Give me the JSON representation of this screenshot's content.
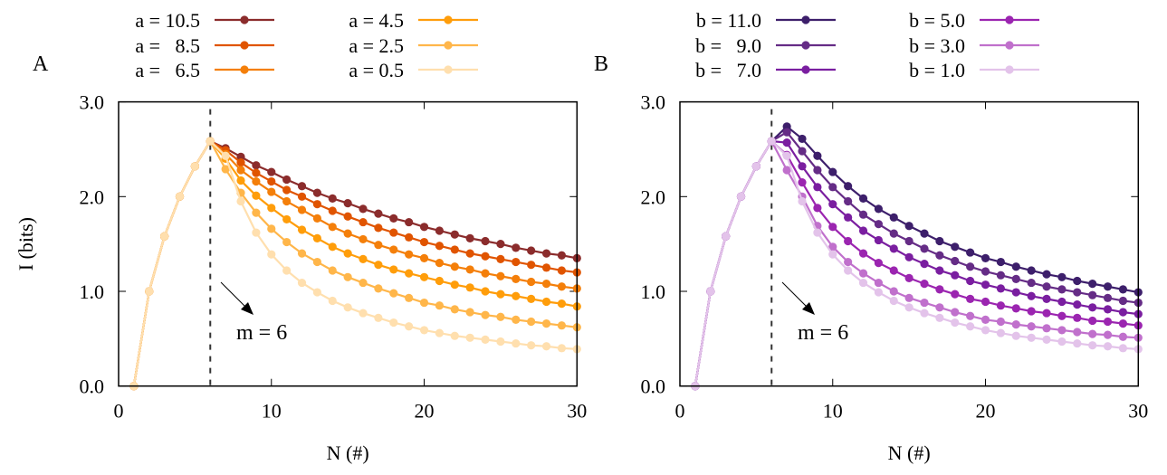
{
  "chart_data": [
    {
      "type": "line",
      "panel_label": "A",
      "xlabel": "N (#)",
      "ylabel": "I (bits)",
      "xlim": [
        0,
        30
      ],
      "ylim": [
        0,
        3.0
      ],
      "xticks": [
        "0",
        "10",
        "20",
        "30"
      ],
      "yticks": [
        "0.0",
        "1.0",
        "2.0",
        "3.0"
      ],
      "grid": false,
      "legend_placement": "top (above plot, two columns)",
      "vline_x": 6,
      "annotation": "m = 6",
      "x": [
        1,
        2,
        3,
        4,
        5,
        6,
        7,
        8,
        9,
        10,
        11,
        12,
        13,
        14,
        15,
        16,
        17,
        18,
        19,
        20,
        21,
        22,
        23,
        24,
        25,
        26,
        27,
        28,
        29,
        30
      ],
      "series": [
        {
          "name": "a = 10.5",
          "color": "#8b2c2c",
          "values": [
            0,
            1.0,
            1.58,
            2.0,
            2.32,
            2.585,
            2.51,
            2.42,
            2.33,
            2.26,
            2.18,
            2.11,
            2.04,
            1.98,
            1.93,
            1.87,
            1.82,
            1.77,
            1.73,
            1.68,
            1.64,
            1.6,
            1.56,
            1.53,
            1.5,
            1.46,
            1.43,
            1.4,
            1.38,
            1.35
          ]
        },
        {
          "name": "a =   8.5",
          "color": "#e05400",
          "values": [
            0,
            1.0,
            1.58,
            2.0,
            2.32,
            2.585,
            2.49,
            2.36,
            2.25,
            2.16,
            2.07,
            2.0,
            1.92,
            1.85,
            1.79,
            1.73,
            1.67,
            1.62,
            1.57,
            1.52,
            1.48,
            1.44,
            1.4,
            1.37,
            1.34,
            1.31,
            1.28,
            1.25,
            1.22,
            1.2
          ]
        },
        {
          "name": "a =   6.5",
          "color": "#f47f0a",
          "values": [
            0,
            1.0,
            1.58,
            2.0,
            2.32,
            2.585,
            2.45,
            2.28,
            2.16,
            2.05,
            1.95,
            1.86,
            1.77,
            1.68,
            1.61,
            1.55,
            1.49,
            1.44,
            1.39,
            1.35,
            1.3,
            1.26,
            1.23,
            1.19,
            1.16,
            1.13,
            1.1,
            1.08,
            1.05,
            1.03
          ]
        },
        {
          "name": "a = 4.5",
          "color": "#ff9d0a",
          "values": [
            0,
            1.0,
            1.58,
            2.0,
            2.32,
            2.585,
            2.4,
            2.17,
            2.01,
            1.88,
            1.76,
            1.65,
            1.56,
            1.47,
            1.4,
            1.34,
            1.28,
            1.23,
            1.19,
            1.15,
            1.11,
            1.07,
            1.04,
            1.0,
            0.97,
            0.95,
            0.92,
            0.89,
            0.87,
            0.84
          ]
        },
        {
          "name": "a = 2.5",
          "color": "#ffb64a",
          "values": [
            0,
            1.0,
            1.58,
            2.0,
            2.32,
            2.585,
            2.29,
            2.04,
            1.83,
            1.66,
            1.52,
            1.4,
            1.31,
            1.22,
            1.15,
            1.09,
            1.03,
            0.98,
            0.93,
            0.88,
            0.85,
            0.81,
            0.78,
            0.75,
            0.73,
            0.7,
            0.68,
            0.66,
            0.64,
            0.62
          ]
        },
        {
          "name": "a = 0.5",
          "color": "#ffdfae",
          "values": [
            0,
            1.0,
            1.58,
            2.0,
            2.32,
            2.585,
            2.43,
            1.95,
            1.62,
            1.39,
            1.22,
            1.09,
            0.99,
            0.9,
            0.83,
            0.77,
            0.72,
            0.67,
            0.63,
            0.59,
            0.56,
            0.53,
            0.51,
            0.49,
            0.47,
            0.45,
            0.43,
            0.42,
            0.4,
            0.39
          ]
        }
      ]
    },
    {
      "type": "line",
      "panel_label": "B",
      "xlabel": "N (#)",
      "ylabel": "",
      "xlim": [
        0,
        30
      ],
      "ylim": [
        0,
        3.0
      ],
      "xticks": [
        "0",
        "10",
        "20",
        "30"
      ],
      "yticks": [
        "0.0",
        "1.0",
        "2.0",
        "3.0"
      ],
      "grid": false,
      "legend_placement": "top (above plot, two columns)",
      "vline_x": 6,
      "annotation": "m = 6",
      "x": [
        1,
        2,
        3,
        4,
        5,
        6,
        7,
        8,
        9,
        10,
        11,
        12,
        13,
        14,
        15,
        16,
        17,
        18,
        19,
        20,
        21,
        22,
        23,
        24,
        25,
        26,
        27,
        28,
        29,
        30
      ],
      "series": [
        {
          "name": "b = 11.0",
          "color": "#3d1f6b",
          "values": [
            0,
            1.0,
            1.58,
            2.0,
            2.32,
            2.585,
            2.74,
            2.61,
            2.43,
            2.26,
            2.11,
            1.98,
            1.87,
            1.78,
            1.69,
            1.61,
            1.53,
            1.47,
            1.41,
            1.35,
            1.31,
            1.26,
            1.22,
            1.18,
            1.15,
            1.11,
            1.08,
            1.05,
            1.02,
            0.99
          ]
        },
        {
          "name": "b =   9.0",
          "color": "#652c86",
          "values": [
            0,
            1.0,
            1.58,
            2.0,
            2.32,
            2.585,
            2.68,
            2.48,
            2.28,
            2.1,
            1.95,
            1.81,
            1.71,
            1.61,
            1.53,
            1.45,
            1.38,
            1.32,
            1.26,
            1.21,
            1.17,
            1.13,
            1.09,
            1.05,
            1.02,
            0.99,
            0.96,
            0.93,
            0.9,
            0.88
          ]
        },
        {
          "name": "b =   7.0",
          "color": "#7a1ea0",
          "values": [
            0,
            1.0,
            1.58,
            2.0,
            2.32,
            2.585,
            2.57,
            2.32,
            2.1,
            1.92,
            1.78,
            1.64,
            1.54,
            1.45,
            1.36,
            1.29,
            1.22,
            1.17,
            1.11,
            1.07,
            1.03,
            0.99,
            0.95,
            0.92,
            0.89,
            0.86,
            0.83,
            0.81,
            0.78,
            0.76
          ]
        },
        {
          "name": "b = 5.0",
          "color": "#9b25b0",
          "values": [
            0,
            1.0,
            1.58,
            2.0,
            2.32,
            2.585,
            2.44,
            2.15,
            1.88,
            1.68,
            1.53,
            1.4,
            1.3,
            1.22,
            1.14,
            1.08,
            1.02,
            0.97,
            0.92,
            0.89,
            0.85,
            0.82,
            0.79,
            0.77,
            0.74,
            0.72,
            0.69,
            0.68,
            0.66,
            0.64
          ]
        },
        {
          "name": "b = 3.0",
          "color": "#c070cc",
          "values": [
            0,
            1.0,
            1.58,
            2.0,
            2.32,
            2.585,
            2.28,
            2.0,
            1.69,
            1.47,
            1.31,
            1.19,
            1.09,
            1.0,
            0.93,
            0.88,
            0.83,
            0.78,
            0.74,
            0.7,
            0.68,
            0.65,
            0.63,
            0.61,
            0.59,
            0.57,
            0.55,
            0.54,
            0.52,
            0.51
          ]
        },
        {
          "name": "b = 1.0",
          "color": "#e3c3ea",
          "values": [
            0,
            1.0,
            1.58,
            2.0,
            2.32,
            2.585,
            2.43,
            1.95,
            1.62,
            1.39,
            1.22,
            1.09,
            0.99,
            0.9,
            0.83,
            0.77,
            0.72,
            0.67,
            0.63,
            0.59,
            0.56,
            0.53,
            0.51,
            0.49,
            0.47,
            0.45,
            0.43,
            0.42,
            0.4,
            0.39
          ]
        }
      ]
    }
  ]
}
